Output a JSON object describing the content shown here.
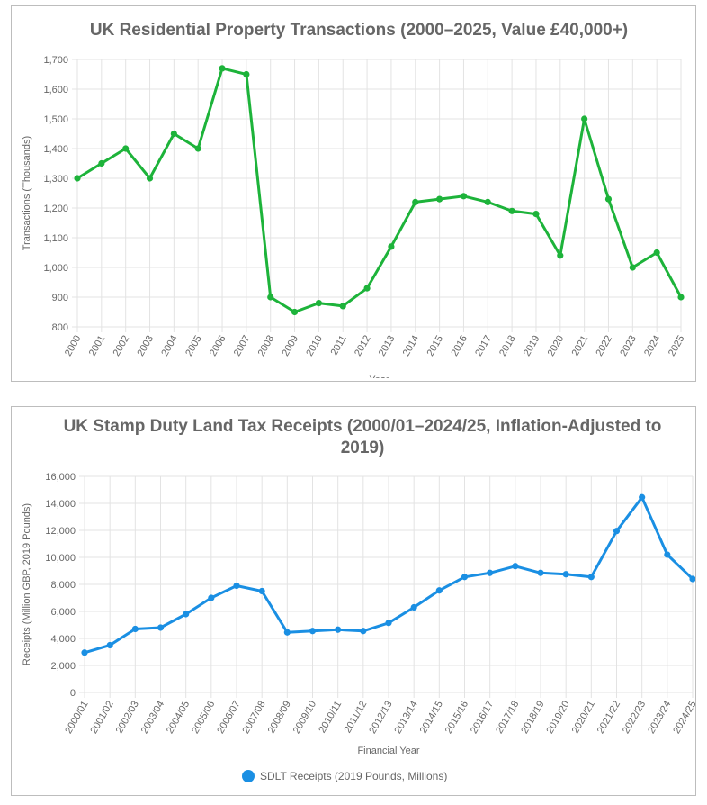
{
  "charts": [
    {
      "type": "line",
      "title": "UK Residential Property Transactions (2000–2025, Value £40,000+)",
      "ylabel": "Transactions (Thousands)",
      "xlabel": "Year",
      "color": "#1db33a",
      "ylim": [
        800,
        1700
      ],
      "yticks": [
        800,
        900,
        1000,
        1100,
        1200,
        1300,
        1400,
        1500,
        1600,
        1700
      ],
      "categories": [
        "2000",
        "2001",
        "2002",
        "2003",
        "2004",
        "2005",
        "2006",
        "2007",
        "2008",
        "2009",
        "2010",
        "2011",
        "2012",
        "2013",
        "2014",
        "2015",
        "2016",
        "2017",
        "2018",
        "2019",
        "2020",
        "2021",
        "2022",
        "2023",
        "2024",
        "2025"
      ],
      "values": [
        1300,
        1350,
        1400,
        1300,
        1450,
        1400,
        1670,
        1650,
        900,
        850,
        880,
        870,
        930,
        1070,
        1220,
        1230,
        1240,
        1220,
        1190,
        1180,
        1040,
        1500,
        1230,
        1000,
        1050,
        900
      ],
      "grid": true
    },
    {
      "type": "line",
      "title_lines": [
        "UK Stamp Duty Land Tax Receipts (2000/01–2024/25, Inflation-Adjusted to",
        "2019)"
      ],
      "ylabel": "Receipts (Million GBP, 2019 Pounds)",
      "xlabel": "Financial Year",
      "color": "#1a8fe3",
      "ylim": [
        0,
        16000
      ],
      "yticks": [
        0,
        2000,
        4000,
        6000,
        8000,
        10000,
        12000,
        14000,
        16000
      ],
      "categories": [
        "2000/01",
        "2001/02",
        "2002/03",
        "2003/04",
        "2004/05",
        "2005/06",
        "2006/07",
        "2007/08",
        "2008/09",
        "2009/10",
        "2010/11",
        "2011/12",
        "2012/13",
        "2013/14",
        "2014/15",
        "2015/16",
        "2016/17",
        "2017/18",
        "2018/19",
        "2019/20",
        "2020/21",
        "2021/22",
        "2022/23",
        "2023/24",
        "2024/25"
      ],
      "values": [
        2950,
        3500,
        4700,
        4800,
        5800,
        7000,
        7900,
        7500,
        4450,
        4550,
        4650,
        4550,
        5150,
        6300,
        7550,
        8550,
        8850,
        9350,
        8850,
        8750,
        8550,
        11950,
        14450,
        10200,
        8400
      ],
      "legend": {
        "position": "bottom",
        "label": "SDLT Receipts (2019 Pounds, Millions)"
      },
      "grid": true
    }
  ]
}
